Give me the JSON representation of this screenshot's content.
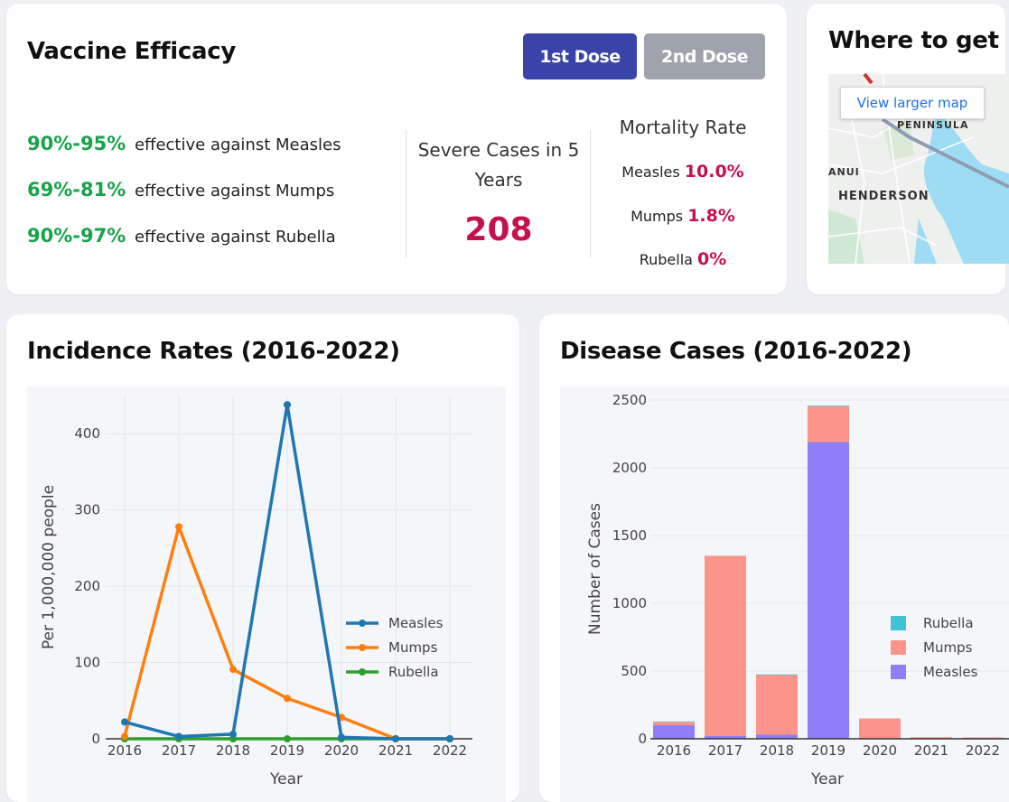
{
  "efficacy": {
    "title": "Vaccine Efficacy",
    "dose1_label": "1st Dose",
    "dose2_label": "2nd Dose",
    "rows": [
      {
        "pct": "90%-95%",
        "text": "effective against Measles"
      },
      {
        "pct": "69%-81%",
        "text": "effective against Mumps"
      },
      {
        "pct": "90%-97%",
        "text": "effective against Rubella"
      }
    ],
    "severe_label": "Severe Cases in 5 Years",
    "severe_value": "208",
    "mortality_title": "Mortality Rate",
    "mortality": [
      {
        "disease": "Measles",
        "rate": "10.0%"
      },
      {
        "disease": "Mumps",
        "rate": "1.8%"
      },
      {
        "disease": "Rubella",
        "rate": "0%"
      }
    ]
  },
  "map": {
    "title": "Where to get",
    "view_larger": "View larger map",
    "labels": [
      "PENINSULA",
      "ANUI",
      "HENDERSON"
    ]
  },
  "incidence": {
    "title": "Incidence Rates (2016-2022)"
  },
  "cases": {
    "title": "Disease Cases (2016-2022)"
  },
  "colors": {
    "accent": "#3a43a8",
    "green": "#19a34a",
    "crimson": "#c4124e"
  },
  "chart_data": [
    {
      "type": "line",
      "x": [
        2016,
        2017,
        2018,
        2019,
        2020,
        2021,
        2022
      ],
      "series": [
        {
          "name": "Measles",
          "color": "#1f77b4",
          "values": [
            22,
            3,
            6,
            438,
            2,
            0,
            0
          ]
        },
        {
          "name": "Mumps",
          "color": "#ff7f0e",
          "values": [
            3,
            278,
            91,
            53,
            28,
            0,
            0
          ]
        },
        {
          "name": "Rubella",
          "color": "#2ca02c",
          "values": [
            0,
            0,
            0,
            0,
            0,
            0,
            0
          ]
        }
      ],
      "xlabel": "Year",
      "ylabel": "Per 1,000,000 people",
      "ylim": [
        0,
        450
      ],
      "yticks": [
        0,
        100,
        200,
        300,
        400
      ],
      "grid": true,
      "legend": "right"
    },
    {
      "type": "bar",
      "stacked": true,
      "categories": [
        "2016",
        "2017",
        "2018",
        "2019",
        "2020",
        "2021",
        "2022"
      ],
      "series": [
        {
          "name": "Measles",
          "color": "#8f7ff7",
          "values": [
            100,
            20,
            30,
            2190,
            0,
            0,
            0
          ]
        },
        {
          "name": "Mumps",
          "color": "#fd948c",
          "values": [
            25,
            1330,
            440,
            265,
            150,
            12,
            10
          ]
        },
        {
          "name": "Rubella",
          "color": "#42c2d8",
          "values": [
            3,
            1,
            5,
            5,
            0,
            0,
            0
          ]
        }
      ],
      "legend_order": [
        "Rubella",
        "Mumps",
        "Measles"
      ],
      "xlabel": "Year",
      "ylabel": "Number of Cases",
      "ylim": [
        0,
        2600
      ],
      "yticks": [
        0,
        500,
        1000,
        1500,
        2000,
        2500
      ],
      "grid": true,
      "legend": "right"
    }
  ]
}
